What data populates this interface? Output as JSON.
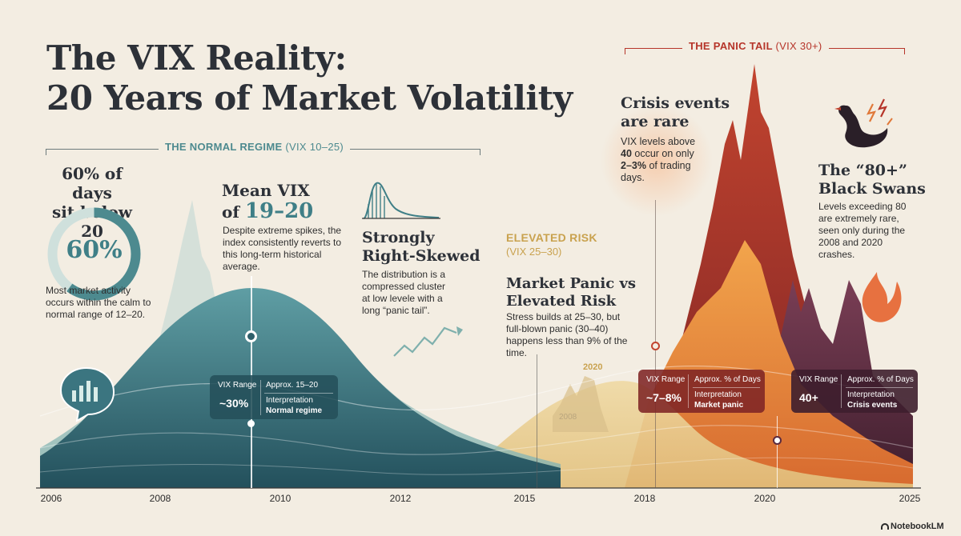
{
  "title": {
    "line1": "The VIX Reality:",
    "line2": "20 Years of Market Volatility"
  },
  "normal_regime": {
    "label": "THE NORMAL REGIME",
    "range": "(VIX 10–25)",
    "stat_heading_1": "60% of days",
    "stat_heading_2": "sit below 20",
    "donut_value": "60%",
    "donut_fraction": 0.6,
    "desc": "Most market activity occurs within the calm to normal range of 12–20."
  },
  "mean": {
    "heading_1": "Mean VIX",
    "heading_2": "of ",
    "heading_value": "19–20",
    "desc": "Despite extreme spikes, the index consistently reverts to this long-term historical average."
  },
  "skew": {
    "heading_1": "Strongly",
    "heading_2": "Right-Skewed",
    "desc": "The distribution is a compressed cluster at low levele with a long “panic tail”."
  },
  "elevated": {
    "label": "ELEVATED RISK",
    "range": "(VIX 25–30)",
    "heading_1": "Market Panic vs",
    "heading_2": "Elevated Risk",
    "desc": "Stress builds at 25–30, but full-blown panic (30–40) happens less than 9% of the time.",
    "year_2020": "2020",
    "year_2008": "2008"
  },
  "panic_tail": {
    "label": "THE PANIC TAIL",
    "range": "(VIX 30+)"
  },
  "crisis": {
    "heading_1": "Crisis events",
    "heading_2": "are rare",
    "desc_1": "VIX levels above ",
    "desc_bold_1": "40",
    "desc_2": " occur on only ",
    "desc_bold_2": "2–3%",
    "desc_3": " of trading days."
  },
  "black_swans": {
    "heading_1": "The “80+”",
    "heading_2": "Black Swans",
    "desc": "Levels exceeding 80 are extremely rare, seen only during the 2008 and 2020 crashes."
  },
  "cards": [
    {
      "range_label": "VIX Range",
      "range_value": "~30%",
      "approx": "Approx. 15–20",
      "interp_label": "Interpretation",
      "interp_value": "Normal regime"
    },
    {
      "range_label": "VIX Range",
      "range_value": "~7–8%",
      "approx": "Approx. % of Days",
      "interp_label": "Interpretation",
      "interp_value": "Market panic"
    },
    {
      "range_label": "VIX Range",
      "range_value": "40+",
      "approx": "Approx. % of Days",
      "interp_label": "Interpretation",
      "interp_value": "Crisis events"
    }
  ],
  "axis_ticks": [
    "2006",
    "2008",
    "2010",
    "2012",
    "2015",
    "2018",
    "2020",
    "2025"
  ],
  "brand": "NotebookLM",
  "colors": {
    "teal": "#3f7f87",
    "teal_dark": "#2f5f6a",
    "gold": "#c9a24f",
    "orange": "#e0793a",
    "red": "#b6352a",
    "plum": "#5a2a3e"
  }
}
